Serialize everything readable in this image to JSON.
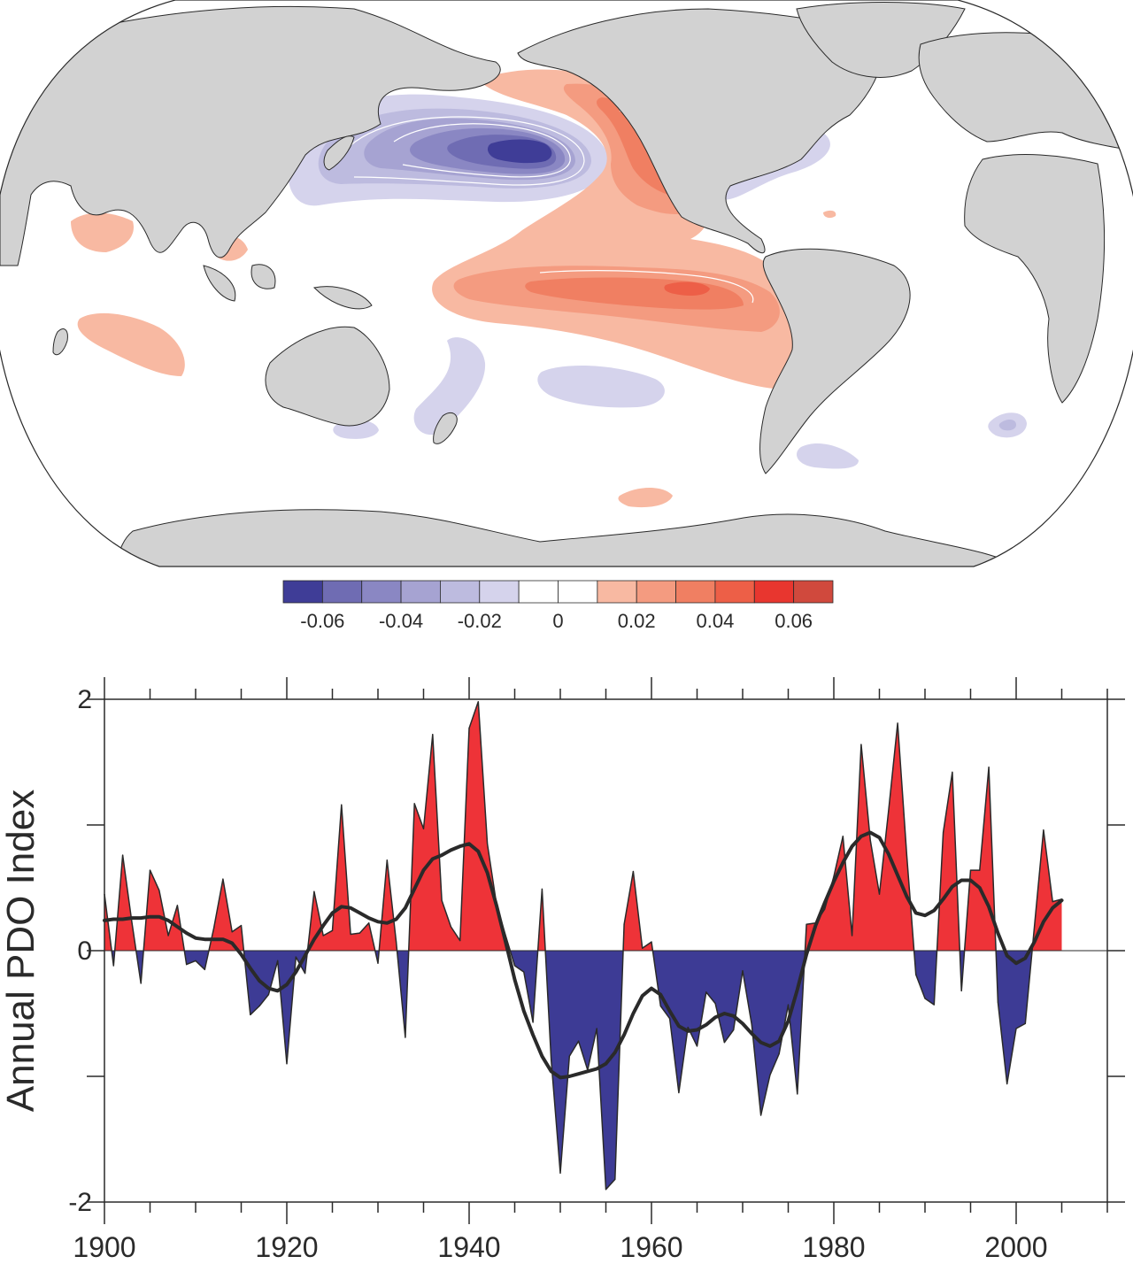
{
  "colors": {
    "ocean": "#ffffff",
    "land": "#d2d2d2",
    "coast": "#2a2a2a",
    "positive_fill": "#ee3338",
    "negative_fill": "#3d3b95",
    "line": "#2a2a2a"
  },
  "colorbar": {
    "colors": [
      "#3f3d97",
      "#6f6cb3",
      "#8a87c3",
      "#a6a3d2",
      "#bdbbdf",
      "#d5d3ec",
      "#ffffff",
      "#ffffff",
      "#f8b9a2",
      "#f49b80",
      "#f07f62",
      "#ed5f47",
      "#e8362f",
      "#d0493d"
    ],
    "tick_labels": [
      "-0.06",
      "-0.04",
      "-0.02",
      "0",
      "0.02",
      "0.04",
      "0.06"
    ],
    "tick_values": [
      -0.06,
      -0.04,
      -0.02,
      0,
      0.02,
      0.04,
      0.06
    ]
  },
  "map": {
    "projection": "Robinson (Pacific-centred)",
    "pattern": "PDO regression of SST",
    "negative_center": "North Pacific",
    "positive_regions": [
      "Eastern Pacific",
      "Alaska coast",
      "Indian Ocean"
    ]
  },
  "chart_data": {
    "type": "area",
    "ylabel": "Annual PDO Index",
    "xlabel": "",
    "xlim": [
      1900,
      2010
    ],
    "ylim": [
      -2,
      2
    ],
    "x_ticks": [
      1900,
      1920,
      1940,
      1960,
      1980,
      2000
    ],
    "x_tick_labels": [
      "1900",
      "1920",
      "1940",
      "1960",
      "1980",
      "2000"
    ],
    "y_ticks": [
      -2,
      0,
      2
    ],
    "y_tick_labels": [
      "-2",
      "0",
      "2"
    ],
    "grid": false,
    "x": [
      1900,
      1901,
      1902,
      1903,
      1904,
      1905,
      1906,
      1907,
      1908,
      1909,
      1910,
      1911,
      1912,
      1913,
      1914,
      1915,
      1916,
      1917,
      1918,
      1919,
      1920,
      1921,
      1922,
      1923,
      1924,
      1925,
      1926,
      1927,
      1928,
      1929,
      1930,
      1931,
      1932,
      1933,
      1934,
      1935,
      1936,
      1937,
      1938,
      1939,
      1940,
      1941,
      1942,
      1943,
      1944,
      1945,
      1946,
      1947,
      1948,
      1949,
      1950,
      1951,
      1952,
      1953,
      1954,
      1955,
      1956,
      1957,
      1958,
      1959,
      1960,
      1961,
      1962,
      1963,
      1964,
      1965,
      1966,
      1967,
      1968,
      1969,
      1970,
      1971,
      1972,
      1973,
      1974,
      1975,
      1976,
      1977,
      1978,
      1979,
      1980,
      1981,
      1982,
      1983,
      1984,
      1985,
      1986,
      1987,
      1988,
      1989,
      1990,
      1991,
      1992,
      1993,
      1994,
      1995,
      1996,
      1997,
      1998,
      1999,
      2000,
      2001,
      2002,
      2003,
      2004,
      2005
    ],
    "series": [
      {
        "values": [
          0.45,
          -0.12,
          0.76,
          0.23,
          -0.26,
          0.64,
          0.48,
          0.12,
          0.36,
          -0.11,
          -0.08,
          -0.15,
          0.18,
          0.57,
          0.15,
          0.2,
          -0.51,
          -0.44,
          -0.35,
          -0.08,
          -0.9,
          -0.05,
          -0.18,
          0.47,
          0.12,
          0.16,
          1.16,
          0.13,
          0.14,
          0.22,
          -0.1,
          0.72,
          0.07,
          -0.69,
          1.17,
          0.97,
          1.72,
          0.4,
          0.19,
          0.08,
          1.77,
          1.98,
          0.85,
          0.37,
          0.12,
          -0.12,
          -0.17,
          -0.57,
          0.49,
          -0.87,
          -1.77,
          -0.84,
          -0.72,
          -0.95,
          -0.62,
          -1.9,
          -1.82,
          0.21,
          0.63,
          0.02,
          0.07,
          -0.44,
          -0.54,
          -1.13,
          -0.61,
          -0.76,
          -0.33,
          -0.42,
          -0.73,
          -0.63,
          -0.16,
          -0.59,
          -1.31,
          -0.99,
          -0.82,
          -0.43,
          -1.14,
          0.21,
          0.22,
          0.33,
          0.59,
          0.91,
          0.12,
          1.64,
          0.88,
          0.45,
          1.11,
          1.81,
          0.76,
          -0.19,
          -0.38,
          -0.43,
          0.94,
          1.42,
          -0.32,
          0.64,
          0.64,
          1.46,
          -0.41,
          -1.06,
          -0.62,
          -0.58,
          0.19,
          0.96,
          0.39,
          0.41
        ]
      },
      {
        "values": [
          0.24,
          0.25,
          0.25,
          0.26,
          0.26,
          0.27,
          0.27,
          0.24,
          0.19,
          0.14,
          0.1,
          0.09,
          0.09,
          0.09,
          0.06,
          -0.03,
          -0.14,
          -0.24,
          -0.3,
          -0.32,
          -0.27,
          -0.17,
          -0.04,
          0.09,
          0.2,
          0.3,
          0.35,
          0.34,
          0.3,
          0.26,
          0.23,
          0.22,
          0.25,
          0.34,
          0.49,
          0.64,
          0.73,
          0.76,
          0.8,
          0.83,
          0.85,
          0.79,
          0.62,
          0.36,
          0.07,
          -0.23,
          -0.48,
          -0.67,
          -0.84,
          -0.96,
          -1.01,
          -1.0,
          -0.98,
          -0.96,
          -0.94,
          -0.9,
          -0.81,
          -0.67,
          -0.5,
          -0.36,
          -0.3,
          -0.35,
          -0.48,
          -0.6,
          -0.64,
          -0.63,
          -0.59,
          -0.53,
          -0.5,
          -0.52,
          -0.58,
          -0.66,
          -0.73,
          -0.76,
          -0.72,
          -0.56,
          -0.31,
          -0.03,
          0.2,
          0.38,
          0.55,
          0.7,
          0.83,
          0.91,
          0.94,
          0.9,
          0.77,
          0.6,
          0.43,
          0.3,
          0.28,
          0.32,
          0.41,
          0.51,
          0.56,
          0.56,
          0.5,
          0.35,
          0.14,
          -0.04,
          -0.1,
          -0.06,
          0.07,
          0.23,
          0.34,
          0.4
        ]
      }
    ]
  }
}
